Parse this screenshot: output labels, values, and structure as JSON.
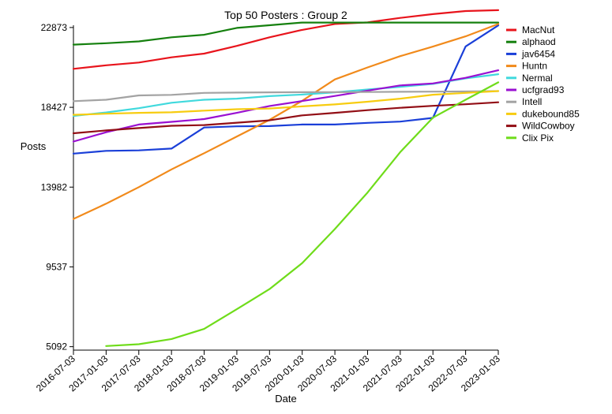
{
  "chart_data": {
    "type": "line",
    "title": "Top 50 Posters : Group 2",
    "xlabel": "Date",
    "ylabel": "Posts",
    "x": [
      "2016-07-03",
      "2017-01-03",
      "2017-07-03",
      "2018-01-03",
      "2018-07-03",
      "2019-01-03",
      "2019-07-03",
      "2020-01-03",
      "2020-07-03",
      "2021-01-03",
      "2021-07-03",
      "2022-01-03",
      "2022-07-03",
      "2023-01-03"
    ],
    "yticks": [
      5092,
      9537,
      13982,
      18427,
      22873
    ],
    "ylim": [
      4900,
      23000
    ],
    "grid": false,
    "legend_position": "right",
    "series": [
      {
        "name": "MacNut",
        "color": "#e8141c",
        "values": [
          20570,
          20770,
          20920,
          21210,
          21420,
          21850,
          22330,
          22740,
          23070,
          23160,
          23410,
          23620,
          23790,
          23840
        ]
      },
      {
        "name": "alphaod",
        "color": "#15800e",
        "values": [
          21920,
          22000,
          22100,
          22330,
          22470,
          22850,
          23000,
          23150,
          23150,
          23150,
          23150,
          23150,
          23150,
          23150
        ]
      },
      {
        "name": "jav6454",
        "color": "#1a3fd8",
        "values": [
          15850,
          16000,
          16030,
          16130,
          17300,
          17370,
          17380,
          17470,
          17470,
          17560,
          17630,
          17840,
          21820,
          22990
        ]
      },
      {
        "name": "Huntn",
        "color": "#f18a1b",
        "values": [
          12210,
          13060,
          13980,
          14970,
          15870,
          16800,
          17730,
          18790,
          19980,
          20650,
          21280,
          21810,
          22380,
          23070
        ]
      },
      {
        "name": "Nermal",
        "color": "#40d9dd",
        "values": [
          17950,
          18140,
          18380,
          18680,
          18850,
          18910,
          19050,
          19140,
          19260,
          19420,
          19570,
          19730,
          20040,
          20270
        ]
      },
      {
        "name": "ucfgrad93",
        "color": "#9a10d2",
        "values": [
          16520,
          17040,
          17470,
          17620,
          17770,
          18120,
          18500,
          18780,
          19060,
          19360,
          19650,
          19760,
          20070,
          20490
        ]
      },
      {
        "name": "Intell",
        "color": "#a3a3a3",
        "values": [
          18770,
          18850,
          19090,
          19120,
          19230,
          19250,
          19260,
          19270,
          19270,
          19280,
          19290,
          19300,
          19310,
          19330
        ]
      },
      {
        "name": "dukebound85",
        "color": "#f7cc10",
        "values": [
          18010,
          18070,
          18120,
          18150,
          18240,
          18320,
          18360,
          18480,
          18590,
          18740,
          18910,
          19130,
          19230,
          19330
        ]
      },
      {
        "name": "WildCowboy",
        "color": "#920e15",
        "values": [
          16980,
          17140,
          17270,
          17400,
          17440,
          17570,
          17700,
          17980,
          18120,
          18270,
          18400,
          18510,
          18600,
          18710
        ]
      },
      {
        "name": "Clix Pix",
        "color": "#6fdc1a",
        "values": [
          null,
          5130,
          5230,
          5520,
          6080,
          7180,
          8300,
          9750,
          11650,
          13680,
          15930,
          17850,
          18850,
          19820
        ]
      }
    ]
  }
}
